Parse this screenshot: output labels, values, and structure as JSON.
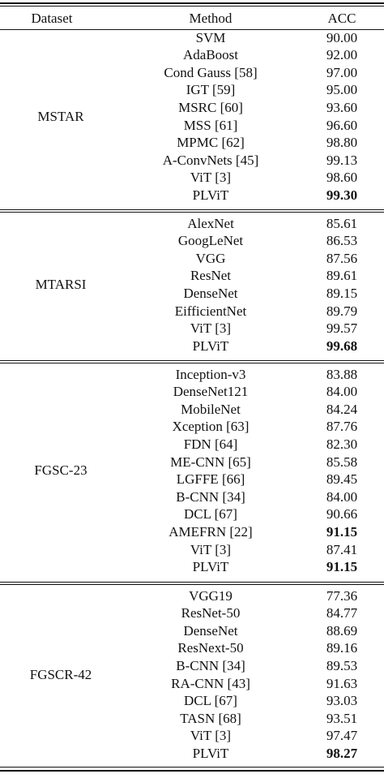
{
  "header": {
    "dataset": "Dataset",
    "method": "Method",
    "acc": "ACC"
  },
  "sections": [
    {
      "dataset": "MSTAR",
      "rows": [
        {
          "method": "SVM",
          "acc": "90.00",
          "bold": false
        },
        {
          "method": "AdaBoost",
          "acc": "92.00",
          "bold": false
        },
        {
          "method": "Cond Gauss [58]",
          "acc": "97.00",
          "bold": false
        },
        {
          "method": "IGT [59]",
          "acc": "95.00",
          "bold": false
        },
        {
          "method": "MSRC [60]",
          "acc": "93.60",
          "bold": false
        },
        {
          "method": "MSS [61]",
          "acc": "96.60",
          "bold": false
        },
        {
          "method": "MPMC [62]",
          "acc": "98.80",
          "bold": false
        },
        {
          "method": "A-ConvNets [45]",
          "acc": "99.13",
          "bold": false
        },
        {
          "method": "ViT [3]",
          "acc": "98.60",
          "bold": false
        },
        {
          "method": "PLViT",
          "acc": "99.30",
          "bold": true
        }
      ]
    },
    {
      "dataset": "MTARSI",
      "rows": [
        {
          "method": "AlexNet",
          "acc": "85.61",
          "bold": false
        },
        {
          "method": "GoogLeNet",
          "acc": "86.53",
          "bold": false
        },
        {
          "method": "VGG",
          "acc": "87.56",
          "bold": false
        },
        {
          "method": "ResNet",
          "acc": "89.61",
          "bold": false
        },
        {
          "method": "DenseNet",
          "acc": "89.15",
          "bold": false
        },
        {
          "method": "EifficientNet",
          "acc": "89.79",
          "bold": false
        },
        {
          "method": "ViT [3]",
          "acc": "99.57",
          "bold": false
        },
        {
          "method": "PLViT",
          "acc": "99.68",
          "bold": true
        }
      ]
    },
    {
      "dataset": "FGSC-23",
      "rows": [
        {
          "method": "Inception-v3",
          "acc": "83.88",
          "bold": false
        },
        {
          "method": "DenseNet121",
          "acc": "84.00",
          "bold": false
        },
        {
          "method": "MobileNet",
          "acc": "84.24",
          "bold": false
        },
        {
          "method": "Xception [63]",
          "acc": "87.76",
          "bold": false
        },
        {
          "method": "FDN [64]",
          "acc": "82.30",
          "bold": false
        },
        {
          "method": "ME-CNN [65]",
          "acc": "85.58",
          "bold": false
        },
        {
          "method": "LGFFE [66]",
          "acc": "89.45",
          "bold": false
        },
        {
          "method": "B-CNN [34]",
          "acc": "84.00",
          "bold": false
        },
        {
          "method": "DCL [67]",
          "acc": "90.66",
          "bold": false
        },
        {
          "method": "AMEFRN [22]",
          "acc": "91.15",
          "bold": true
        },
        {
          "method": "ViT [3]",
          "acc": "87.41",
          "bold": false
        },
        {
          "method": "PLViT",
          "acc": "91.15",
          "bold": true
        }
      ]
    },
    {
      "dataset": "FGSCR-42",
      "rows": [
        {
          "method": "VGG19",
          "acc": "77.36",
          "bold": false
        },
        {
          "method": "ResNet-50",
          "acc": "84.77",
          "bold": false
        },
        {
          "method": "DenseNet",
          "acc": "88.69",
          "bold": false
        },
        {
          "method": "ResNext-50",
          "acc": "89.16",
          "bold": false
        },
        {
          "method": "B-CNN [34]",
          "acc": "89.53",
          "bold": false
        },
        {
          "method": "RA-CNN [43]",
          "acc": "91.63",
          "bold": false
        },
        {
          "method": "DCL [67]",
          "acc": "93.03",
          "bold": false
        },
        {
          "method": "TASN [68]",
          "acc": "93.51",
          "bold": false
        },
        {
          "method": "ViT [3]",
          "acc": "97.47",
          "bold": false
        },
        {
          "method": "PLViT",
          "acc": "98.27",
          "bold": true
        }
      ]
    }
  ]
}
